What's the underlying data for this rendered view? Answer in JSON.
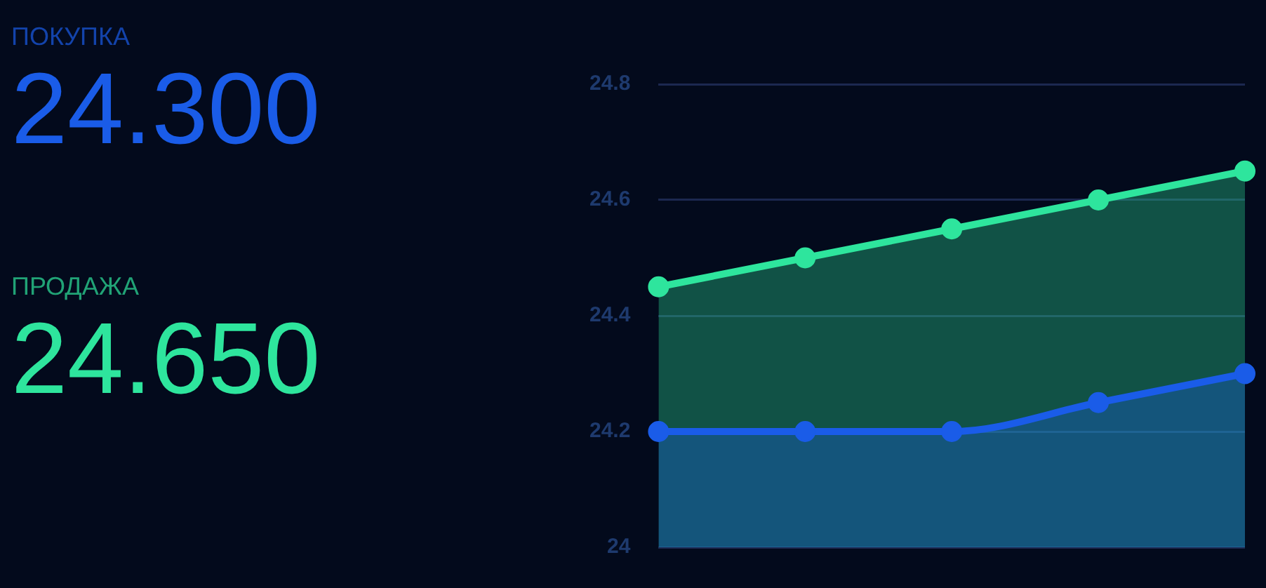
{
  "chart_data": {
    "type": "area",
    "categories": [
      null,
      null,
      null,
      null,
      null
    ],
    "series": [
      {
        "name": "ПОКУПКА",
        "color": "#1a5ce8",
        "values": [
          24.2,
          24.2,
          24.2,
          24.25,
          24.3
        ]
      },
      {
        "name": "ПРОДАЖА",
        "color": "#2ee59d",
        "values": [
          24.45,
          24.5,
          24.55,
          24.6,
          24.65
        ]
      }
    ],
    "marker": "circle",
    "annotations": [
      "24.300",
      "24.650"
    ],
    "ylim": [
      24,
      24.8
    ],
    "yticks": [
      24,
      24.2,
      24.4,
      24.6,
      24.8
    ],
    "grid": "y",
    "tick_labels": "y",
    "legend": false
  }
}
